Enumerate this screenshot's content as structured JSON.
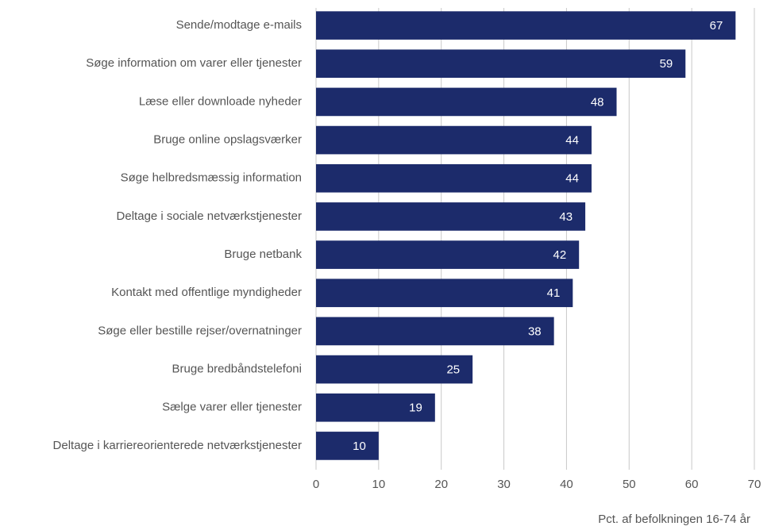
{
  "chart_data": {
    "type": "bar",
    "orientation": "horizontal",
    "categories": [
      "Sende/modtage e-mails",
      "Søge information om varer eller tjenester",
      "Læse eller downloade nyheder",
      "Bruge online opslagsværker",
      "Søge helbredsmæssig information",
      "Deltage i sociale netværkstjenester",
      "Bruge netbank",
      "Kontakt med offentlige myndigheder",
      "Søge eller bestille rejser/overnatninger",
      "Bruge bredbåndstelefoni",
      "Sælge varer eller tjenester",
      "Deltage i karriereorienterede netværkstjenester"
    ],
    "values": [
      67,
      59,
      48,
      44,
      44,
      43,
      42,
      41,
      38,
      25,
      19,
      10
    ],
    "color": "#1c2b6b",
    "xlim": [
      0,
      70
    ],
    "xticks": [
      0,
      10,
      20,
      30,
      40,
      50,
      60,
      70
    ],
    "grid": true,
    "xlabel": "Pct. af befolkningen 16-74 år"
  }
}
